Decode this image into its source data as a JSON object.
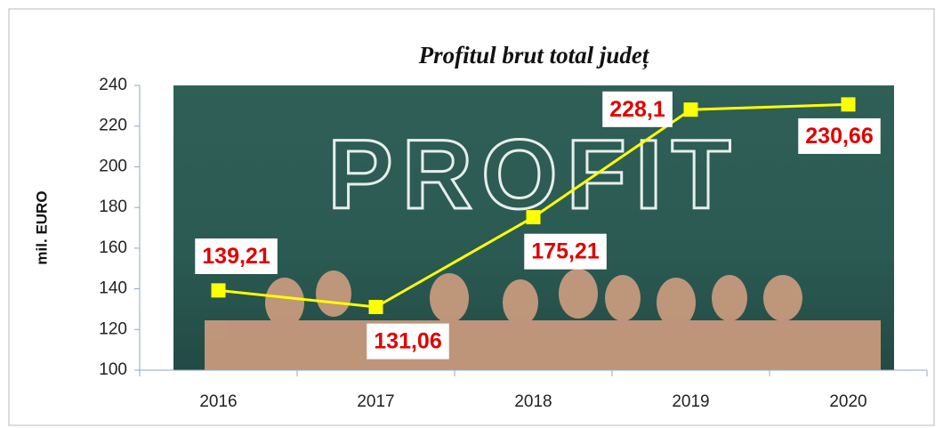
{
  "chart_data": {
    "type": "line",
    "title": "Profitul brut total județ",
    "background_text": "PROFIT",
    "y_label": "mil. EURO",
    "categories": [
      "2016",
      "2017",
      "2018",
      "2019",
      "2020"
    ],
    "values": [
      139.21,
      131.06,
      175.21,
      228.1,
      230.66
    ],
    "value_labels": [
      "139,21",
      "131,06",
      "175,21",
      "228,1",
      "230,66"
    ],
    "color": "#ffff00",
    "ylim": [
      100,
      240
    ],
    "yticks": [
      100,
      120,
      140,
      160,
      180,
      200,
      220,
      240
    ]
  }
}
